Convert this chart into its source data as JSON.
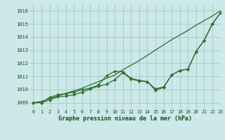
{
  "title": "Graphe pression niveau de la mer (hPa)",
  "bg_color": "#cce8e8",
  "grid_color": "#aacccc",
  "line_color": "#2d6e2d",
  "xlim": [
    -0.5,
    23
  ],
  "ylim": [
    1008.5,
    1016.5
  ],
  "xticks": [
    0,
    1,
    2,
    3,
    4,
    5,
    6,
    7,
    8,
    9,
    10,
    11,
    12,
    13,
    14,
    15,
    16,
    17,
    18,
    19,
    20,
    21,
    22,
    23
  ],
  "yticks": [
    1009,
    1010,
    1011,
    1012,
    1013,
    1014,
    1015,
    1016
  ],
  "series_smooth": [
    1009.0,
    1009.1,
    1009.3,
    1009.5,
    1009.7,
    1009.9,
    1010.1,
    1010.35,
    1010.6,
    1010.85,
    1011.1,
    1011.5,
    1011.85,
    1012.2,
    1012.6,
    1013.0,
    1013.4,
    1013.8,
    1014.15,
    1014.5,
    1014.9,
    1015.25,
    1015.6,
    1016.0
  ],
  "series_marker1": [
    1009.0,
    1009.0,
    1009.4,
    1009.6,
    1009.7,
    1009.8,
    1010.0,
    1010.1,
    1010.35,
    1011.05,
    1011.4,
    1011.35,
    1010.85,
    1010.7,
    1010.6,
    1010.05,
    1010.2,
    1011.1,
    1011.45,
    1011.55,
    1012.9,
    1013.75,
    1015.0,
    1015.85
  ],
  "series_marker2": [
    1009.0,
    1009.0,
    1009.2,
    1009.45,
    1009.5,
    1009.6,
    1009.8,
    1010.05,
    1010.25,
    1010.4,
    1010.75,
    1011.3,
    1010.8,
    1010.65,
    1010.6,
    1009.95,
    1010.15,
    1011.1,
    1011.45,
    1011.55,
    1012.9,
    1013.75,
    1015.0,
    1015.85
  ]
}
